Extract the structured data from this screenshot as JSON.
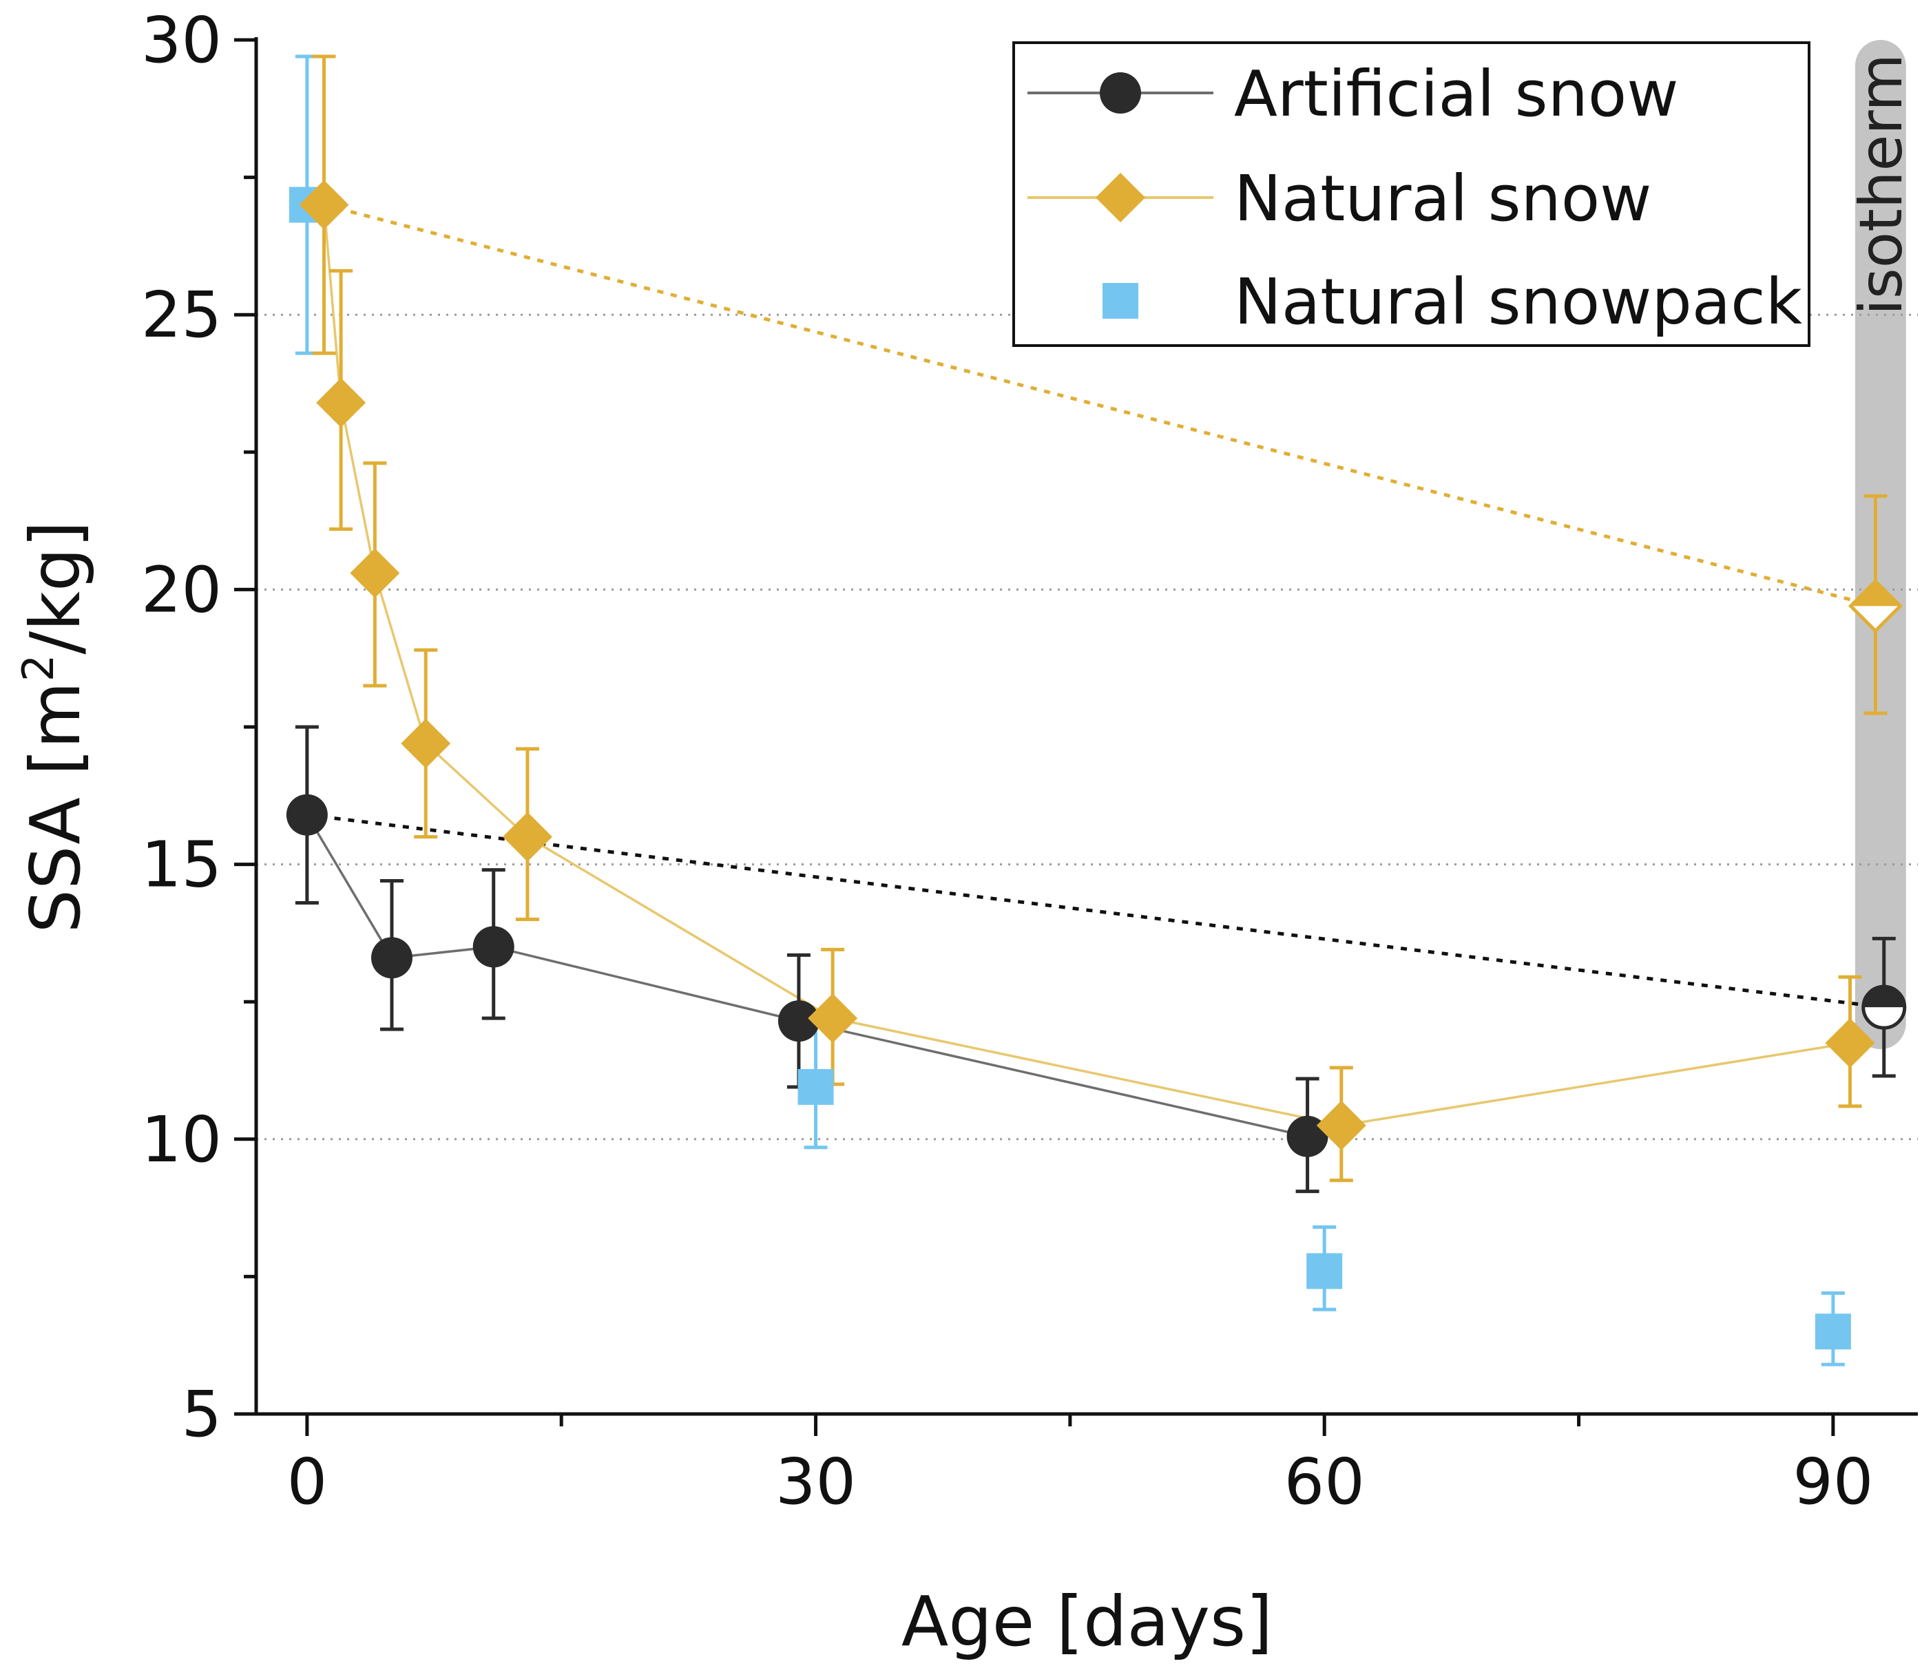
{
  "chart_data": {
    "type": "scatter",
    "title": "",
    "xlabel": "Age [days]",
    "ylabel_main": "SSA [m",
    "ylabel_sup": "2",
    "ylabel_tail": "/kg]",
    "xlim": [
      -3,
      95
    ],
    "ylim": [
      5,
      30
    ],
    "x_ticks": [
      0,
      30,
      60,
      90
    ],
    "x_tick_labels": [
      "0",
      "30",
      "60",
      "90"
    ],
    "x_minor_ticks": [
      15,
      45,
      75
    ],
    "y_ticks": [
      5,
      10,
      15,
      20,
      25,
      30
    ],
    "y_tick_labels": [
      "5",
      "10",
      "15",
      "20",
      "25",
      "30"
    ],
    "y_minor_ticks": [
      7.5,
      12.5,
      17.5,
      22.5,
      27.5
    ],
    "grid_y": [
      10,
      15,
      20,
      25
    ],
    "legend_position": "top-right",
    "colors": {
      "artificial": "#2b2b2b",
      "artificial_line": "#6e6e6e",
      "natural": "#e0ae35",
      "natural_line": "#e8c76e",
      "snowpack": "#74c6f0",
      "isotherm_band": "#c4c4c4",
      "grid": "#9a9a9a"
    },
    "isotherm": {
      "label": "isotherm",
      "x_start": 91.3,
      "x_end": 94.3,
      "y_top": 30,
      "y_bottom": 12.2
    },
    "series": [
      {
        "name": "Artificial snow",
        "marker": "circle",
        "points": [
          {
            "x": 0,
            "y": 15.9,
            "err_low": 14.3,
            "err_high": 17.5
          },
          {
            "x": 5,
            "y": 13.3,
            "err_low": 12.0,
            "err_high": 14.7
          },
          {
            "x": 11,
            "y": 13.5,
            "err_low": 12.2,
            "err_high": 14.9
          },
          {
            "x": 29,
            "y": 12.15,
            "err_low": 10.95,
            "err_high": 13.35
          },
          {
            "x": 59,
            "y": 10.05,
            "err_low": 9.05,
            "err_high": 11.1
          }
        ],
        "special_point": {
          "x": 93,
          "y": 12.4,
          "err_low": 11.15,
          "err_high": 13.65
        },
        "trend_start": {
          "x": 0,
          "y": 15.9
        },
        "trend_end": {
          "x": 93,
          "y": 12.4
        }
      },
      {
        "name": "Natural snow",
        "marker": "diamond",
        "points": [
          {
            "x": 1,
            "y": 27.0,
            "err_low": 24.3,
            "err_high": 29.7
          },
          {
            "x": 2,
            "y": 23.4,
            "err_low": 21.1,
            "err_high": 25.8
          },
          {
            "x": 4,
            "y": 20.3,
            "err_low": 18.25,
            "err_high": 22.3
          },
          {
            "x": 7,
            "y": 17.2,
            "err_low": 15.5,
            "err_high": 18.9
          },
          {
            "x": 13,
            "y": 15.5,
            "err_low": 14.0,
            "err_high": 17.1
          },
          {
            "x": 31,
            "y": 12.2,
            "err_low": 11.0,
            "err_high": 13.45
          },
          {
            "x": 61,
            "y": 10.25,
            "err_low": 9.25,
            "err_high": 11.3
          },
          {
            "x": 91,
            "y": 11.75,
            "err_low": 10.6,
            "err_high": 12.95
          }
        ],
        "special_point": {
          "x": 92.5,
          "y": 19.7,
          "err_low": 17.75,
          "err_high": 21.7
        },
        "trend_start": {
          "x": 1,
          "y": 27.0
        },
        "trend_end": {
          "x": 92.5,
          "y": 19.7
        }
      },
      {
        "name": "Natural snowpack",
        "marker": "square",
        "points": [
          {
            "x": 0,
            "y": 27.0,
            "err_low": 24.3,
            "err_high": 29.7
          },
          {
            "x": 30,
            "y": 10.95,
            "err_low": 9.85,
            "err_high": 12.05
          },
          {
            "x": 60,
            "y": 7.6,
            "err_low": 6.9,
            "err_high": 8.4
          },
          {
            "x": 90,
            "y": 6.5,
            "err_low": 5.9,
            "err_high": 7.2
          }
        ]
      }
    ]
  }
}
